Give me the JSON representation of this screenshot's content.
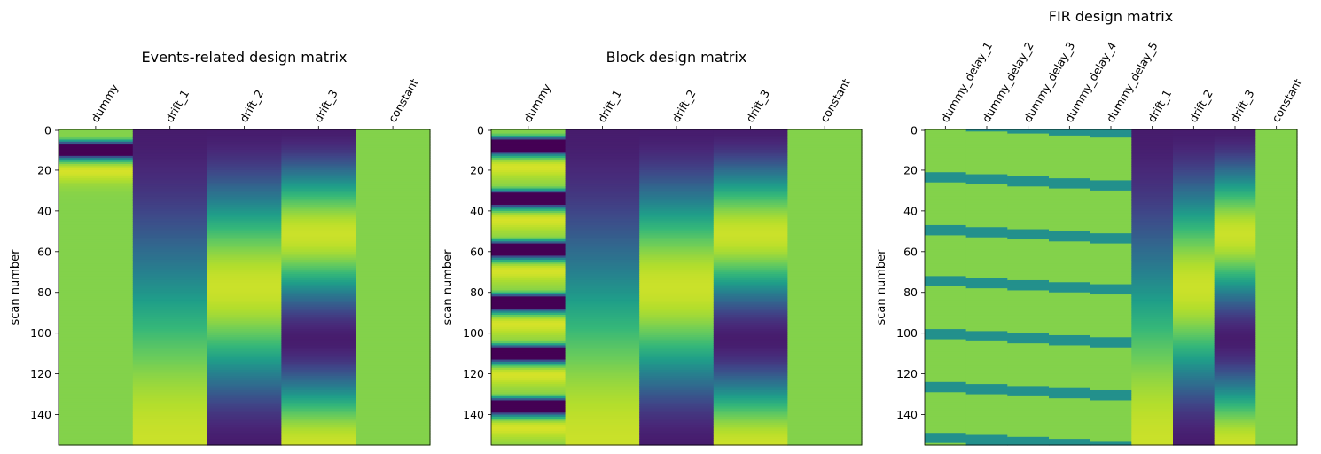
{
  "colormap": "viridis",
  "chart_data": [
    {
      "type": "heatmap",
      "title": "Events-related design matrix",
      "ylabel": "scan number",
      "ylim": [
        0,
        155
      ],
      "yticks": [
        "0",
        "20",
        "40",
        "60",
        "80",
        "100",
        "120",
        "140"
      ],
      "ytick_values": [
        0,
        20,
        40,
        60,
        80,
        100,
        120,
        140
      ],
      "columns": [
        {
          "name": "dummy",
          "kind": "events",
          "onsets": [
            2
          ],
          "duration": 5,
          "delay": 0
        },
        {
          "name": "drift_1",
          "kind": "drift",
          "order": 1
        },
        {
          "name": "drift_2",
          "kind": "drift",
          "order": 2
        },
        {
          "name": "drift_3",
          "kind": "drift",
          "order": 3
        },
        {
          "name": "constant",
          "kind": "constant"
        }
      ]
    },
    {
      "type": "heatmap",
      "title": "Block design matrix",
      "ylabel": "scan number",
      "ylim": [
        0,
        155
      ],
      "yticks": [
        "0",
        "20",
        "40",
        "60",
        "80",
        "100",
        "120",
        "140"
      ],
      "ytick_values": [
        0,
        20,
        40,
        60,
        80,
        100,
        120,
        140
      ],
      "columns": [
        {
          "name": "dummy",
          "kind": "block",
          "onsets": [
            0,
            26,
            51,
            77,
            102,
            128,
            154
          ],
          "duration": 5,
          "delay": 0
        },
        {
          "name": "drift_1",
          "kind": "drift",
          "order": 1
        },
        {
          "name": "drift_2",
          "kind": "drift",
          "order": 2
        },
        {
          "name": "drift_3",
          "kind": "drift",
          "order": 3
        },
        {
          "name": "constant",
          "kind": "constant"
        }
      ]
    },
    {
      "type": "heatmap",
      "title": "FIR design matrix",
      "ylabel": "scan number",
      "ylim": [
        0,
        155
      ],
      "yticks": [
        "0",
        "20",
        "40",
        "60",
        "80",
        "100",
        "120",
        "140"
      ],
      "ytick_values": [
        0,
        20,
        40,
        60,
        80,
        100,
        120,
        140
      ],
      "columns": [
        {
          "name": "dummy_delay_1",
          "kind": "fir",
          "onsets": [
            -5,
            21,
            47,
            72,
            98,
            124,
            149
          ],
          "duration": 5,
          "delay": 0
        },
        {
          "name": "dummy_delay_2",
          "kind": "fir",
          "onsets": [
            -5,
            21,
            47,
            72,
            98,
            124,
            149
          ],
          "duration": 5,
          "delay": 1
        },
        {
          "name": "dummy_delay_3",
          "kind": "fir",
          "onsets": [
            -5,
            21,
            47,
            72,
            98,
            124,
            149
          ],
          "duration": 5,
          "delay": 2
        },
        {
          "name": "dummy_delay_4",
          "kind": "fir",
          "onsets": [
            -5,
            21,
            47,
            72,
            98,
            124,
            149
          ],
          "duration": 5,
          "delay": 3
        },
        {
          "name": "dummy_delay_5",
          "kind": "fir",
          "onsets": [
            -5,
            21,
            47,
            72,
            98,
            124,
            149
          ],
          "duration": 5,
          "delay": 4
        },
        {
          "name": "drift_1",
          "kind": "drift",
          "order": 1
        },
        {
          "name": "drift_2",
          "kind": "drift",
          "order": 2
        },
        {
          "name": "drift_3",
          "kind": "drift",
          "order": 3
        },
        {
          "name": "constant",
          "kind": "constant"
        }
      ]
    }
  ]
}
